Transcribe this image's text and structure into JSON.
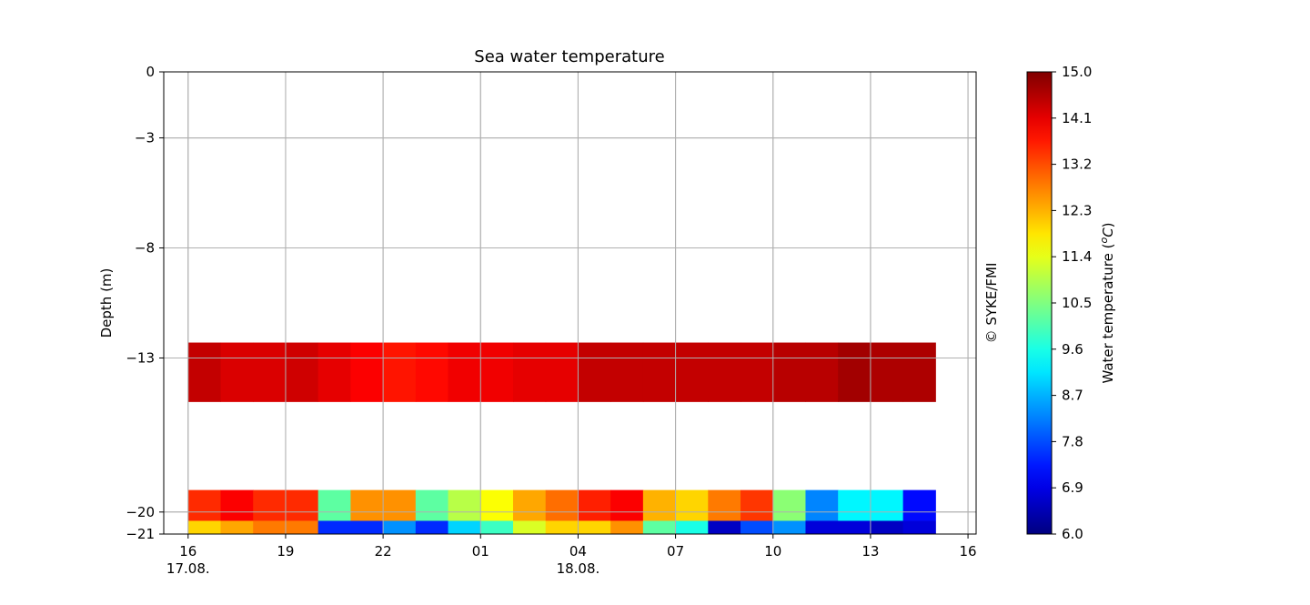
{
  "chart_data": {
    "type": "heatmap",
    "title": "Sea water temperature",
    "ylabel": "Depth (m)",
    "xlabel": "",
    "watermark": "© SYKE/FMI",
    "y_ticks": [
      0,
      -3,
      -8,
      -13,
      -20,
      -21
    ],
    "ylim": [
      -21,
      0
    ],
    "x_range_hours": [
      -0.75,
      24.25
    ],
    "x_ticks": [
      {
        "hour": 0,
        "label": "16",
        "date": "17.08."
      },
      {
        "hour": 3,
        "label": "19",
        "date": ""
      },
      {
        "hour": 6,
        "label": "22",
        "date": ""
      },
      {
        "hour": 9,
        "label": "01",
        "date": ""
      },
      {
        "hour": 12,
        "label": "04",
        "date": "18.08."
      },
      {
        "hour": 15,
        "label": "07",
        "date": ""
      },
      {
        "hour": 18,
        "label": "10",
        "date": ""
      },
      {
        "hour": 21,
        "label": "13",
        "date": ""
      },
      {
        "hour": 24,
        "label": "16",
        "date": ""
      }
    ],
    "grid": true,
    "colorbar": {
      "label": "Water temperature (°C)",
      "label_main": "Water temperature (",
      "label_unit": "oC",
      "label_close": ")",
      "min": 6.0,
      "max": 15.0,
      "ticks": [
        "6.0",
        "6.9",
        "7.8",
        "8.7",
        "9.6",
        "10.5",
        "11.4",
        "12.3",
        "13.2",
        "14.1",
        "15.0"
      ],
      "colormap": "jet"
    },
    "time_bins": [
      "16",
      "17",
      "18",
      "19",
      "20",
      "21",
      "22",
      "23",
      "00",
      "01",
      "02",
      "03",
      "04",
      "05",
      "06",
      "07",
      "08",
      "09",
      "10",
      "11",
      "12",
      "13",
      "14"
    ],
    "depth_layers": [
      {
        "depth_top": -12.3,
        "depth_bottom": -15.0,
        "values": [
          14.4,
          14.2,
          14.2,
          14.3,
          14.1,
          13.9,
          13.7,
          13.8,
          14.0,
          14.0,
          14.1,
          14.1,
          14.4,
          14.4,
          14.4,
          14.4,
          14.4,
          14.4,
          14.5,
          14.5,
          14.7,
          14.6,
          14.6
        ]
      },
      {
        "depth_top": -19.0,
        "depth_bottom": -20.4,
        "values": [
          13.5,
          13.9,
          13.5,
          13.5,
          10.2,
          12.6,
          12.6,
          10.2,
          11.0,
          11.6,
          12.4,
          12.9,
          13.6,
          13.9,
          12.3,
          12.0,
          12.8,
          13.4,
          10.6,
          8.3,
          9.3,
          9.3,
          7.2
        ]
      },
      {
        "depth_top": -20.4,
        "depth_bottom": -21.0,
        "values": [
          12.0,
          12.4,
          12.8,
          12.8,
          7.5,
          7.5,
          8.4,
          7.5,
          9.0,
          9.9,
          11.3,
          12.0,
          12.0,
          12.6,
          10.2,
          9.6,
          6.6,
          7.8,
          8.4,
          6.8,
          6.8,
          6.6,
          6.8
        ]
      }
    ]
  }
}
